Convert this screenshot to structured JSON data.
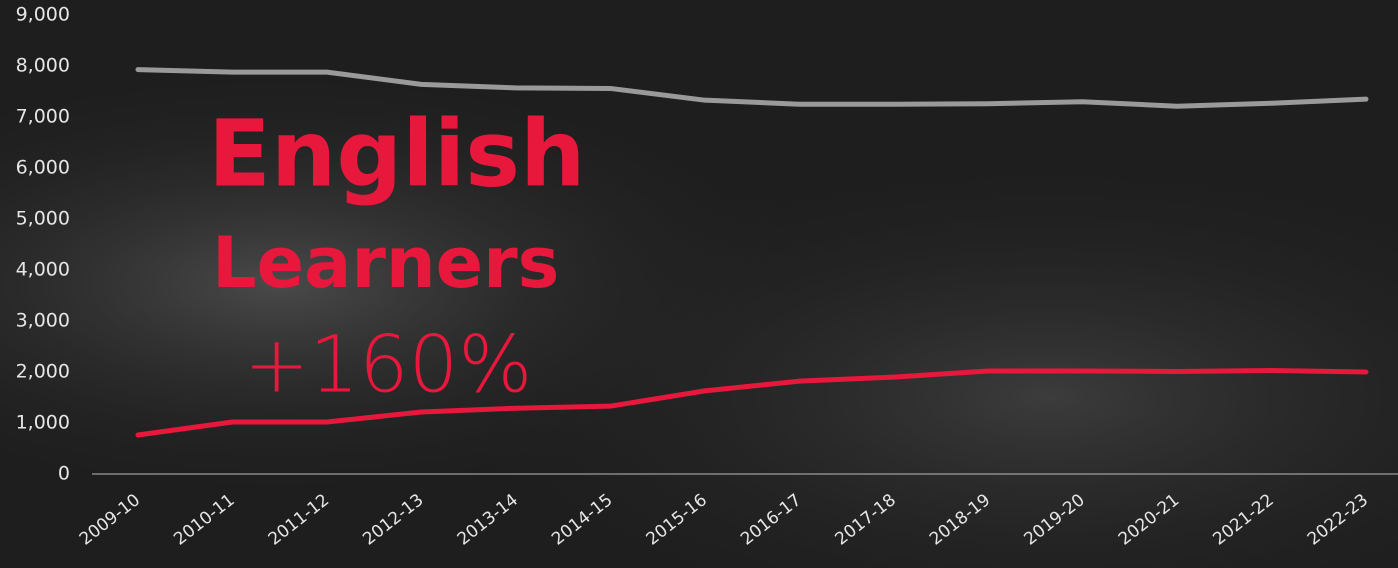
{
  "chart_data": {
    "type": "line",
    "categories": [
      "2009-10",
      "2010-11",
      "2011-12",
      "2012-13",
      "2013-14",
      "2014-15",
      "2015-16",
      "2016-17",
      "2017-18",
      "2018-19",
      "2019-20",
      "2020-21",
      "2021-22",
      "2022-23"
    ],
    "series": [
      {
        "color": "#9a9a9a",
        "values": [
          7930,
          7880,
          7880,
          7640,
          7570,
          7560,
          7330,
          7250,
          7250,
          7260,
          7300,
          7210,
          7270,
          7350
        ]
      },
      {
        "color": "#e8173c",
        "values": [
          765,
          1020,
          1020,
          1215,
          1290,
          1330,
          1630,
          1820,
          1900,
          2020,
          2020,
          2010,
          2030,
          2000
        ]
      }
    ],
    "ylim": [
      0,
      9000
    ],
    "yticks": [
      0,
      {
        "value": 1000,
        "label": "1,000"
      },
      {
        "value": 2000,
        "label": "2,000"
      },
      {
        "value": 3000,
        "label": "3,000"
      },
      {
        "value": 4000,
        "label": "4,000"
      },
      {
        "value": 5000,
        "label": "5,000"
      },
      {
        "value": 6000,
        "label": "6,000"
      },
      {
        "value": 7000,
        "label": "7,000"
      },
      {
        "value": 8000,
        "label": "8,000"
      },
      {
        "value": 9000,
        "label": "9,000"
      }
    ],
    "annotations": [
      "English",
      "Learners",
      "+160%"
    ]
  }
}
